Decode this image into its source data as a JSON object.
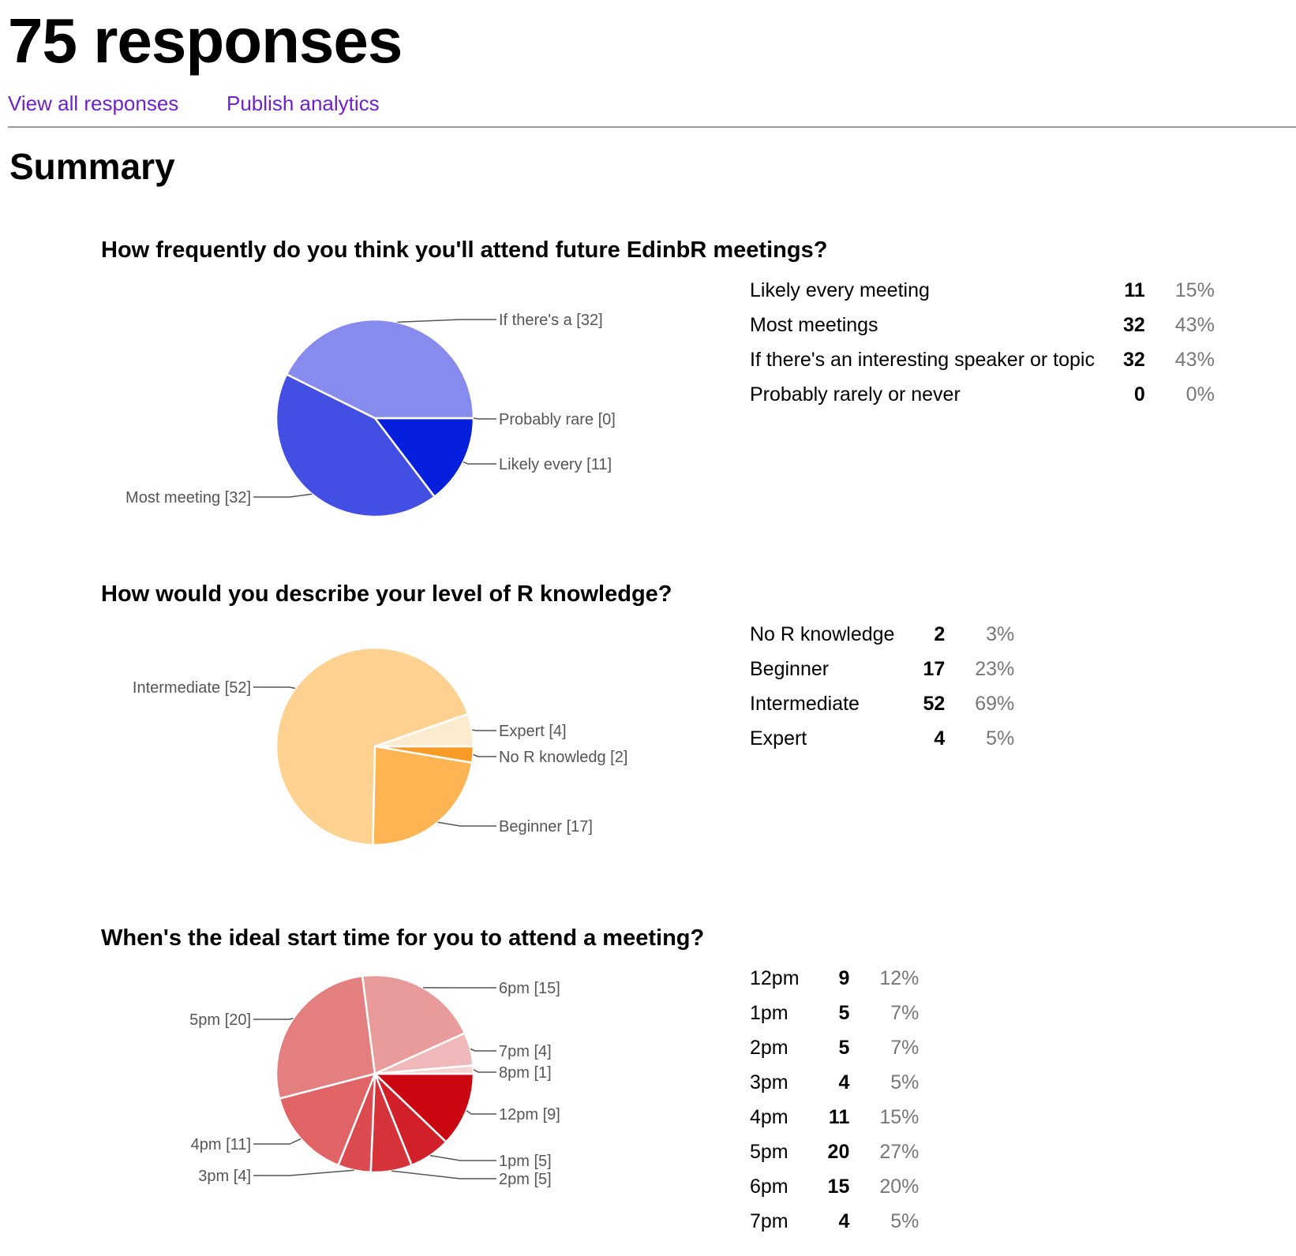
{
  "header": {
    "title": "75 responses",
    "links": [
      "View all responses",
      "Publish analytics"
    ]
  },
  "summary_heading": "Summary",
  "chart_data": [
    {
      "type": "pie",
      "title": "How frequently do you think you'll attend future EdinbR meetings?",
      "slices": [
        {
          "label": "Likely every meeting",
          "short_label": "Likely every [11]",
          "value": 11,
          "percent": "15%",
          "color": "#061fdd"
        },
        {
          "label": "Most meetings",
          "short_label": "Most meeting [32]",
          "value": 32,
          "percent": "43%",
          "color": "#434ee3"
        },
        {
          "label": "If there's an interesting speaker or topic",
          "short_label": "If there's a [32]",
          "value": 32,
          "percent": "43%",
          "color": "#878bee"
        },
        {
          "label": "Probably rarely or never",
          "short_label": "Probably rare [0]",
          "value": 0,
          "percent": "0%",
          "color": "#c3c6f6"
        }
      ]
    },
    {
      "type": "pie",
      "title": "How would you describe your level of R knowledge?",
      "slices": [
        {
          "label": "No R knowledge",
          "short_label": "No R knowledg [2]",
          "value": 2,
          "percent": "3%",
          "color": "#f99b27"
        },
        {
          "label": "Beginner",
          "short_label": "Beginner [17]",
          "value": 17,
          "percent": "23%",
          "color": "#fdb453"
        },
        {
          "label": "Intermediate",
          "short_label": "Intermediate [52]",
          "value": 52,
          "percent": "69%",
          "color": "#fdd18f"
        },
        {
          "label": "Expert",
          "short_label": "Expert [4]",
          "value": 4,
          "percent": "5%",
          "color": "#fdebd0"
        }
      ]
    },
    {
      "type": "pie",
      "title": "When's the ideal start time for you to attend a meeting?",
      "slices": [
        {
          "label": "12pm",
          "short_label": "12pm [9]",
          "value": 9,
          "percent": "12%",
          "color": "#cb0812"
        },
        {
          "label": "1pm",
          "short_label": "1pm [5]",
          "value": 5,
          "percent": "7%",
          "color": "#d2202b"
        },
        {
          "label": "2pm",
          "short_label": "2pm [5]",
          "value": 5,
          "percent": "7%",
          "color": "#d6323a"
        },
        {
          "label": "3pm",
          "short_label": "3pm [4]",
          "value": 4,
          "percent": "5%",
          "color": "#db4a4f"
        },
        {
          "label": "4pm",
          "short_label": "4pm [11]",
          "value": 11,
          "percent": "15%",
          "color": "#e06366"
        },
        {
          "label": "5pm",
          "short_label": "5pm [20]",
          "value": 20,
          "percent": "27%",
          "color": "#e47f7f"
        },
        {
          "label": "6pm",
          "short_label": "6pm [15]",
          "value": 15,
          "percent": "20%",
          "color": "#e99b9c"
        },
        {
          "label": "7pm",
          "short_label": "7pm [4]",
          "value": 4,
          "percent": "5%",
          "color": "#efb8b9"
        },
        {
          "label": "8pm",
          "short_label": "8pm [1]",
          "value": 1,
          "percent": "",
          "color": "#f4d3d4"
        }
      ]
    }
  ]
}
